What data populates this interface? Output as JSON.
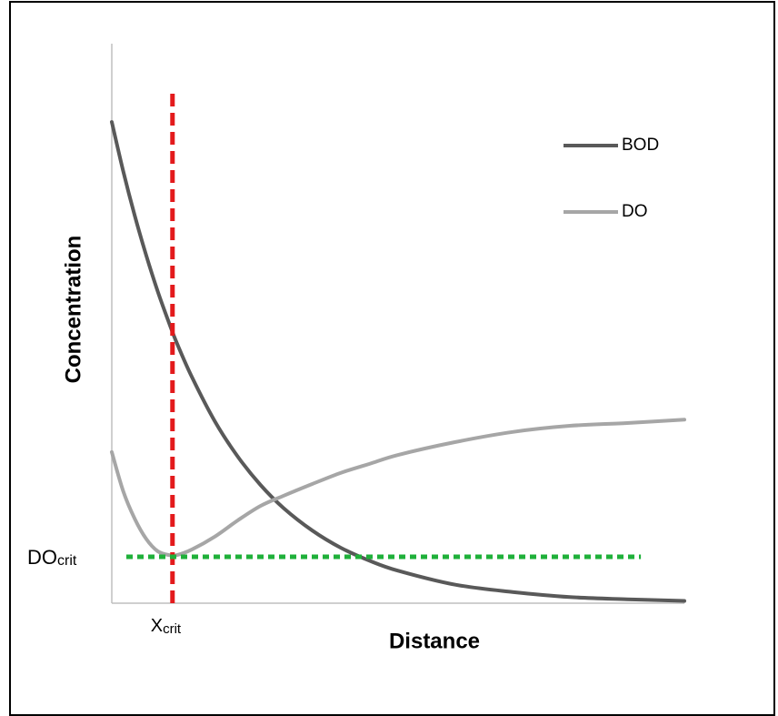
{
  "chart_data": {
    "type": "line",
    "x_label": "Distance",
    "y_label": "Concentration",
    "xlim": [
      0,
      100
    ],
    "ylim": [
      0,
      100
    ],
    "legend": "upper right",
    "x": [
      0,
      2,
      4,
      6,
      8,
      10,
      11.4,
      14,
      18,
      22,
      26,
      30,
      35,
      40,
      45,
      50,
      60,
      70,
      80,
      90,
      100
    ],
    "series": [
      {
        "name": "BOD",
        "color": "#595959",
        "values": [
          86.0,
          77.2,
          69.3,
          62.2,
          55.8,
          50.1,
          46.4,
          40.4,
          32.5,
          26.2,
          21.1,
          17.0,
          13.0,
          9.9,
          7.6,
          5.8,
          3.3,
          2.0,
          1.1,
          0.7,
          0.4
        ]
      },
      {
        "name": "DO",
        "color": "#a6a6a6",
        "values": [
          27.0,
          20.0,
          15.1,
          11.5,
          9.3,
          8.6,
          8.6,
          9.6,
          11.9,
          14.8,
          17.4,
          19.2,
          21.3,
          23.3,
          24.9,
          26.5,
          28.8,
          30.6,
          31.7,
          32.2,
          32.8
        ]
      }
    ],
    "reference_lines": [
      {
        "axis": "x",
        "value": 10.6,
        "color": "#e31a1c",
        "label": "X",
        "label_sub": "crit"
      },
      {
        "axis": "y",
        "value": 8.3,
        "color": "#1fb03a",
        "label": "DO",
        "label_sub": "crit"
      }
    ]
  }
}
